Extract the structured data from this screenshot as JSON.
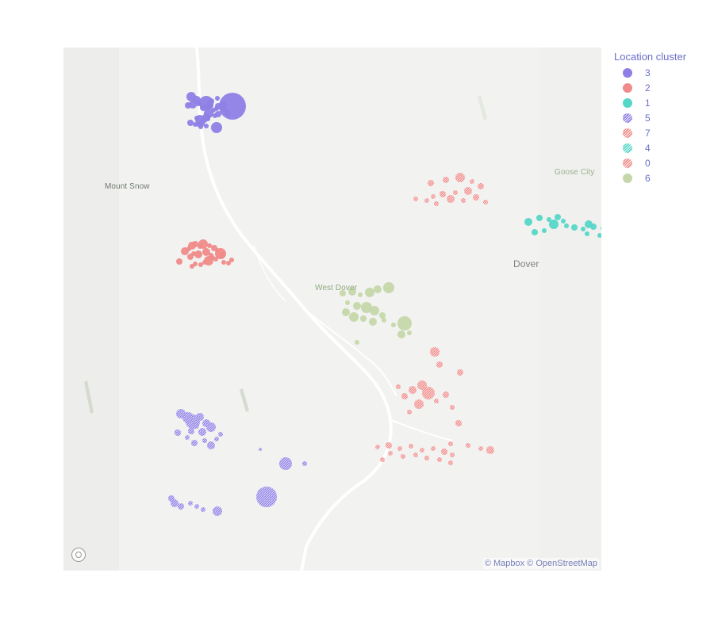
{
  "legend": {
    "title": "Location cluster"
  },
  "attribution": "© Mapbox © OpenStreetMap",
  "place_labels": {
    "mount_snow": "Mount Snow",
    "goose_city": "Goose City",
    "dover": "Dover",
    "west_dover": "West Dover"
  },
  "chart_data": {
    "type": "scatter",
    "subtype": "scatter_mapbox",
    "legend_title": "Location cluster",
    "legend_placement": "right",
    "grid": false,
    "series": [
      {
        "name": "3",
        "color": "#8e7fe6",
        "hatched": false,
        "points": [
          [
            11,
            2,
            6
          ],
          [
            18,
            6,
            5
          ],
          [
            44,
            4,
            3
          ],
          [
            36,
            8,
            4
          ],
          [
            20,
            10,
            4
          ],
          [
            30,
            10,
            9
          ],
          [
            13,
            12,
            5
          ],
          [
            7,
            13,
            4
          ],
          [
            34,
            13,
            5
          ],
          [
            52,
            12,
            4
          ],
          [
            45,
            14,
            4
          ],
          [
            63,
            14,
            17
          ],
          [
            26,
            16,
            4
          ],
          [
            43,
            17,
            3
          ],
          [
            52,
            18,
            3
          ],
          [
            39,
            19,
            3
          ],
          [
            57,
            23,
            4
          ],
          [
            33,
            23,
            6
          ],
          [
            45,
            24,
            4
          ],
          [
            41,
            26,
            3
          ],
          [
            30,
            28,
            5
          ],
          [
            18,
            29,
            3
          ],
          [
            32,
            30,
            3
          ],
          [
            22,
            31,
            6
          ],
          [
            28,
            32,
            3
          ],
          [
            10,
            35,
            4
          ],
          [
            24,
            36,
            4
          ],
          [
            16,
            37,
            3
          ],
          [
            20,
            37,
            3
          ],
          [
            30,
            39,
            3
          ],
          [
            23,
            40,
            3
          ],
          [
            43,
            41,
            7
          ]
        ]
      },
      {
        "name": "2",
        "color": "#ef8b89",
        "hatched": false,
        "points": [
          [
            3,
            47,
            5
          ],
          [
            8,
            44,
            3
          ],
          [
            12,
            40,
            5
          ],
          [
            16,
            38,
            4
          ],
          [
            22,
            41,
            3
          ],
          [
            26,
            38,
            6
          ],
          [
            34,
            40,
            3
          ],
          [
            40,
            43,
            4
          ],
          [
            44,
            46,
            3
          ],
          [
            48,
            50,
            7
          ],
          [
            50,
            52,
            4
          ],
          [
            30,
            48,
            5
          ],
          [
            36,
            52,
            3
          ],
          [
            20,
            51,
            5
          ],
          [
            14,
            50,
            3
          ],
          [
            10,
            54,
            4
          ],
          [
            38,
            55,
            3
          ],
          [
            42,
            57,
            3
          ],
          [
            33,
            59,
            6
          ],
          [
            28,
            61,
            3
          ],
          [
            16,
            63,
            3
          ],
          [
            12,
            66,
            3
          ],
          [
            23,
            64,
            3
          ],
          [
            58,
            62,
            3
          ],
          [
            62,
            58,
            3
          ],
          [
            52,
            61,
            3
          ],
          [
            -4,
            60,
            4
          ]
        ]
      },
      {
        "name": "1",
        "color": "#55d6c7",
        "hatched": false,
        "points": [
          [
            146,
            45,
            5
          ],
          [
            160,
            40,
            4
          ],
          [
            172,
            42,
            3
          ],
          [
            183,
            39,
            4
          ],
          [
            190,
            44,
            3
          ],
          [
            178,
            48,
            6
          ],
          [
            194,
            50,
            3
          ],
          [
            204,
            52,
            4
          ],
          [
            215,
            54,
            3
          ],
          [
            222,
            48,
            5
          ],
          [
            228,
            51,
            4
          ],
          [
            240,
            53,
            3
          ],
          [
            256,
            46,
            6
          ],
          [
            271,
            50,
            3
          ],
          [
            264,
            56,
            4
          ],
          [
            247,
            58,
            4
          ],
          [
            236,
            62,
            3
          ],
          [
            220,
            60,
            3
          ],
          [
            166,
            56,
            3
          ],
          [
            154,
            58,
            4
          ],
          [
            270,
            72,
            5
          ],
          [
            259,
            68,
            3
          ]
        ]
      },
      {
        "name": "5",
        "color": "#8e7fe6",
        "hatched": true,
        "points": [
          [
            -2,
            62,
            6
          ],
          [
            7,
            67,
            7
          ],
          [
            13,
            72,
            9
          ],
          [
            22,
            66,
            5
          ],
          [
            17,
            77,
            4
          ],
          [
            30,
            74,
            5
          ],
          [
            36,
            79,
            6
          ],
          [
            11,
            84,
            4
          ],
          [
            25,
            85,
            5
          ],
          [
            6,
            92,
            3
          ],
          [
            15,
            99,
            4
          ],
          [
            28,
            96,
            3
          ],
          [
            36,
            102,
            5
          ],
          [
            43,
            94,
            3
          ],
          [
            -6,
            86,
            4
          ],
          [
            48,
            88,
            3
          ]
        ]
      },
      {
        "name": "7",
        "color": "#ef8b89",
        "hatched": true,
        "points": [
          [
            143,
            16,
            4
          ],
          [
            162,
            12,
            4
          ],
          [
            180,
            9,
            6
          ],
          [
            195,
            14,
            3
          ],
          [
            206,
            20,
            4
          ],
          [
            190,
            26,
            5
          ],
          [
            174,
            28,
            3
          ],
          [
            158,
            30,
            4
          ],
          [
            146,
            33,
            3
          ],
          [
            168,
            36,
            5
          ],
          [
            184,
            38,
            3
          ],
          [
            200,
            34,
            4
          ],
          [
            212,
            40,
            3
          ],
          [
            150,
            42,
            3
          ],
          [
            138,
            38,
            3
          ],
          [
            124,
            36,
            3
          ]
        ]
      },
      {
        "name": "4",
        "color": "#55d6c7",
        "hatched": true,
        "points": [
          [
            250,
            10,
            8
          ],
          [
            258,
            14,
            4
          ],
          [
            246,
            18,
            3
          ],
          [
            262,
            20,
            4
          ],
          [
            270,
            26,
            3
          ],
          [
            254,
            28,
            5
          ],
          [
            264,
            32,
            3
          ],
          [
            276,
            36,
            4
          ],
          [
            248,
            38,
            3
          ],
          [
            258,
            42,
            4
          ],
          [
            242,
            46,
            3
          ],
          [
            236,
            24,
            3
          ],
          [
            270,
            44,
            3
          ],
          [
            280,
            30,
            3
          ]
        ]
      },
      {
        "name": "0",
        "color": "#ef8b89",
        "hatched": true,
        "points": [
          [
            76,
            4,
            3
          ],
          [
            90,
            2,
            4
          ],
          [
            104,
            6,
            3
          ],
          [
            118,
            3,
            3
          ],
          [
            132,
            8,
            3
          ],
          [
            146,
            6,
            3
          ],
          [
            160,
            10,
            4
          ],
          [
            170,
            14,
            3
          ],
          [
            92,
            12,
            3
          ],
          [
            108,
            16,
            3
          ],
          [
            124,
            14,
            3
          ],
          [
            138,
            18,
            3
          ],
          [
            154,
            20,
            3
          ],
          [
            168,
            24,
            3
          ],
          [
            82,
            20,
            3
          ]
        ]
      },
      {
        "name": "6",
        "color": "#c5d7a9",
        "hatched": false,
        "points": [
          [
            82,
            10,
            4
          ],
          [
            94,
            8,
            5
          ],
          [
            104,
            12,
            3
          ],
          [
            116,
            9,
            6
          ],
          [
            126,
            5,
            5
          ],
          [
            140,
            3,
            7
          ],
          [
            88,
            22,
            3
          ],
          [
            100,
            26,
            5
          ],
          [
            112,
            28,
            7
          ],
          [
            122,
            32,
            6
          ],
          [
            132,
            38,
            4
          ],
          [
            86,
            34,
            5
          ],
          [
            96,
            40,
            6
          ],
          [
            108,
            42,
            4
          ],
          [
            120,
            46,
            5
          ],
          [
            134,
            44,
            3
          ],
          [
            146,
            50,
            3
          ],
          [
            160,
            48,
            9
          ],
          [
            166,
            60,
            3
          ],
          [
            156,
            62,
            5
          ],
          [
            100,
            72,
            3
          ]
        ]
      }
    ]
  }
}
